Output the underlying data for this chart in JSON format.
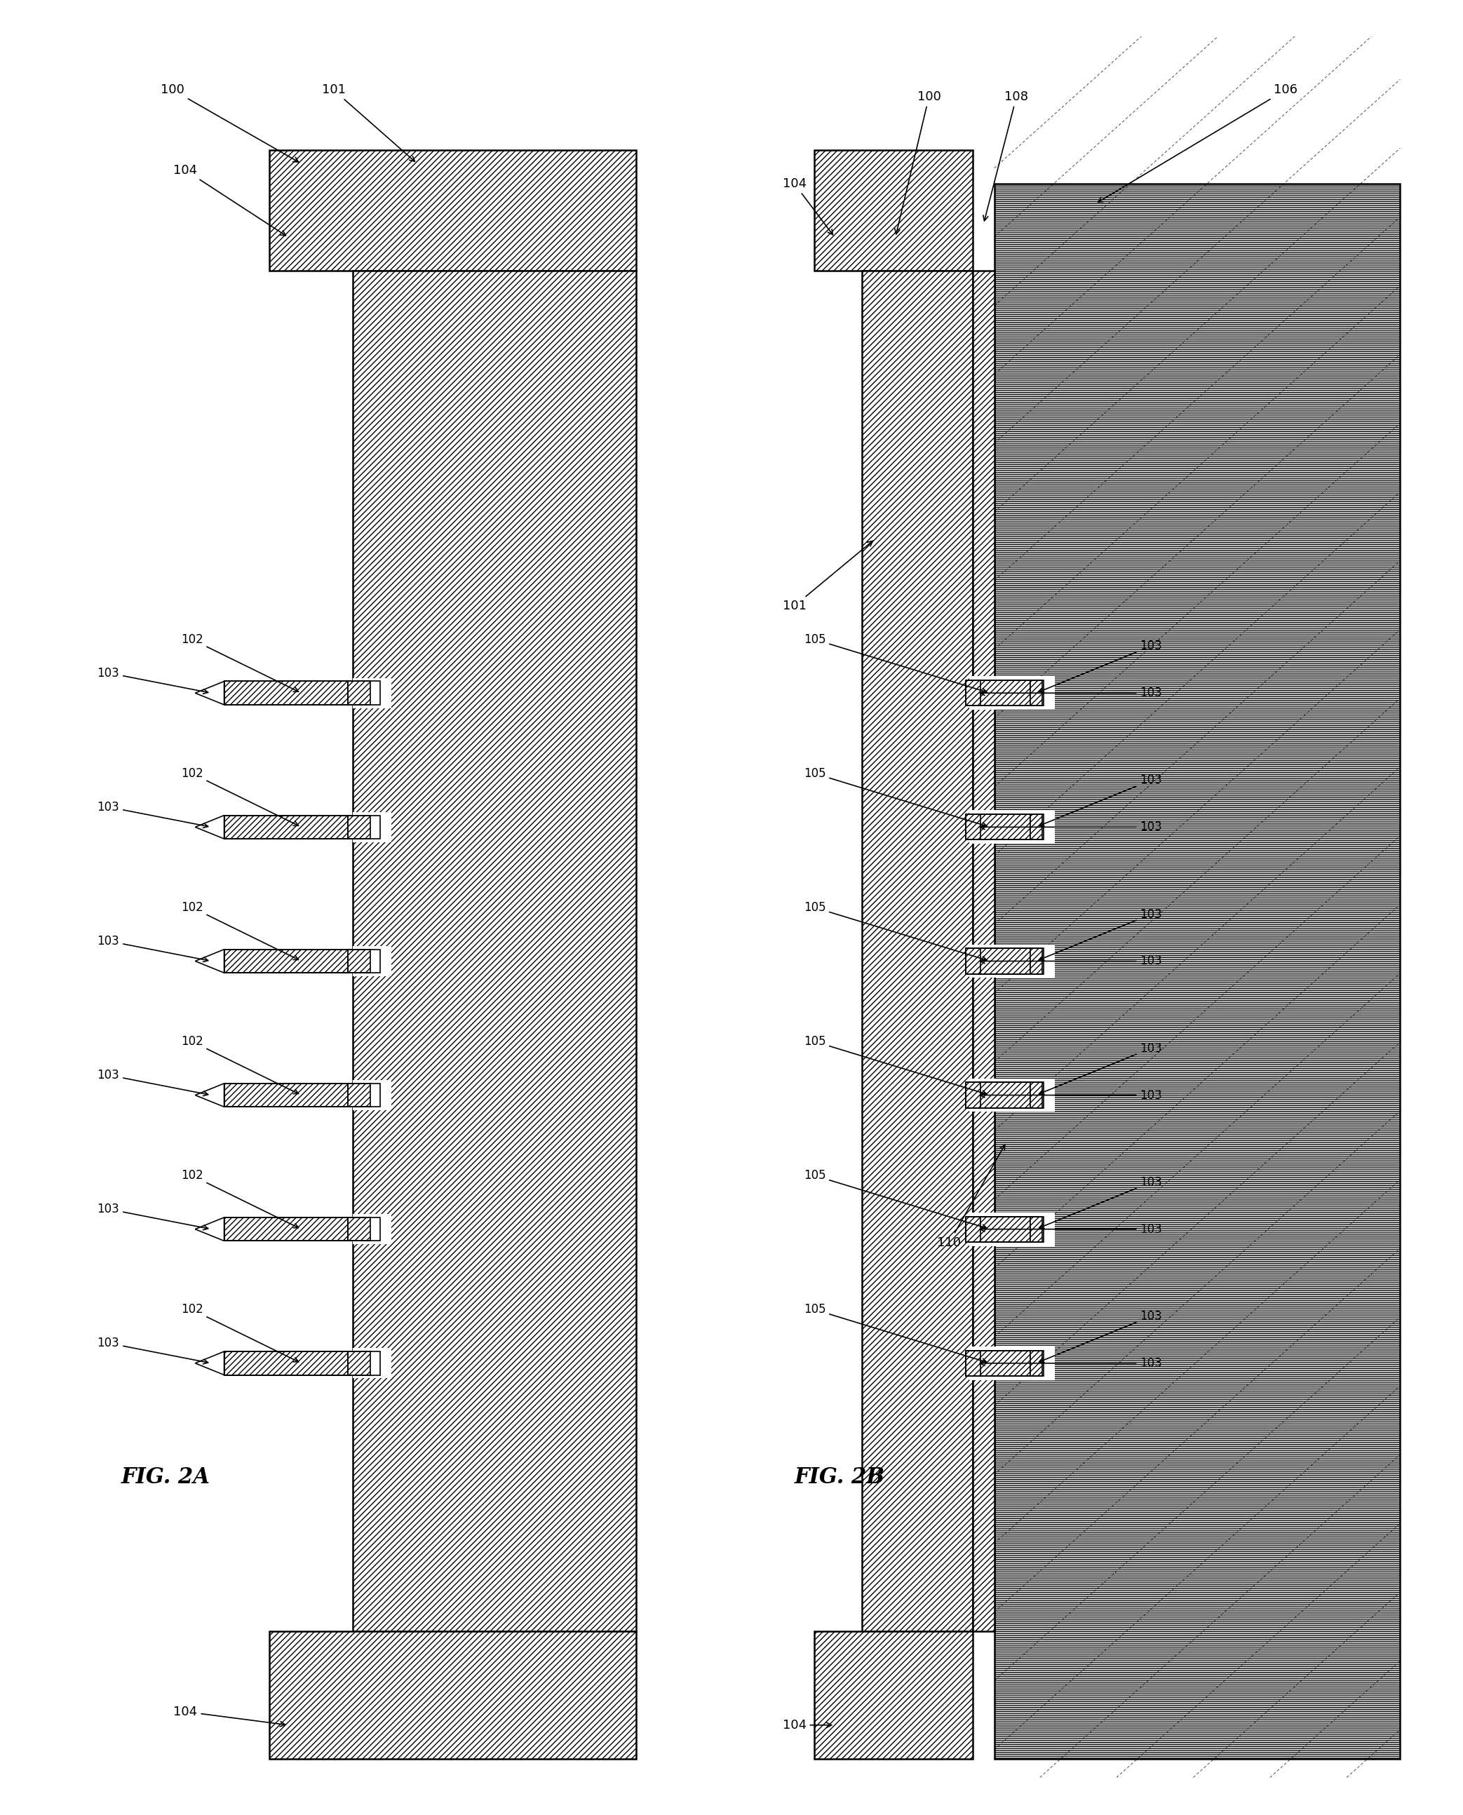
{
  "fig_width": 20.86,
  "fig_height": 25.88,
  "bg_color": "#ffffff",
  "fig2a_label": "FIG. 2A",
  "fig2b_label": "FIG. 2B",
  "label_fontsize": 13,
  "fig_label_fontsize": 22,
  "arrow_lw": 1.2,
  "hatch_dense": "////",
  "hatch_sparse": "----"
}
